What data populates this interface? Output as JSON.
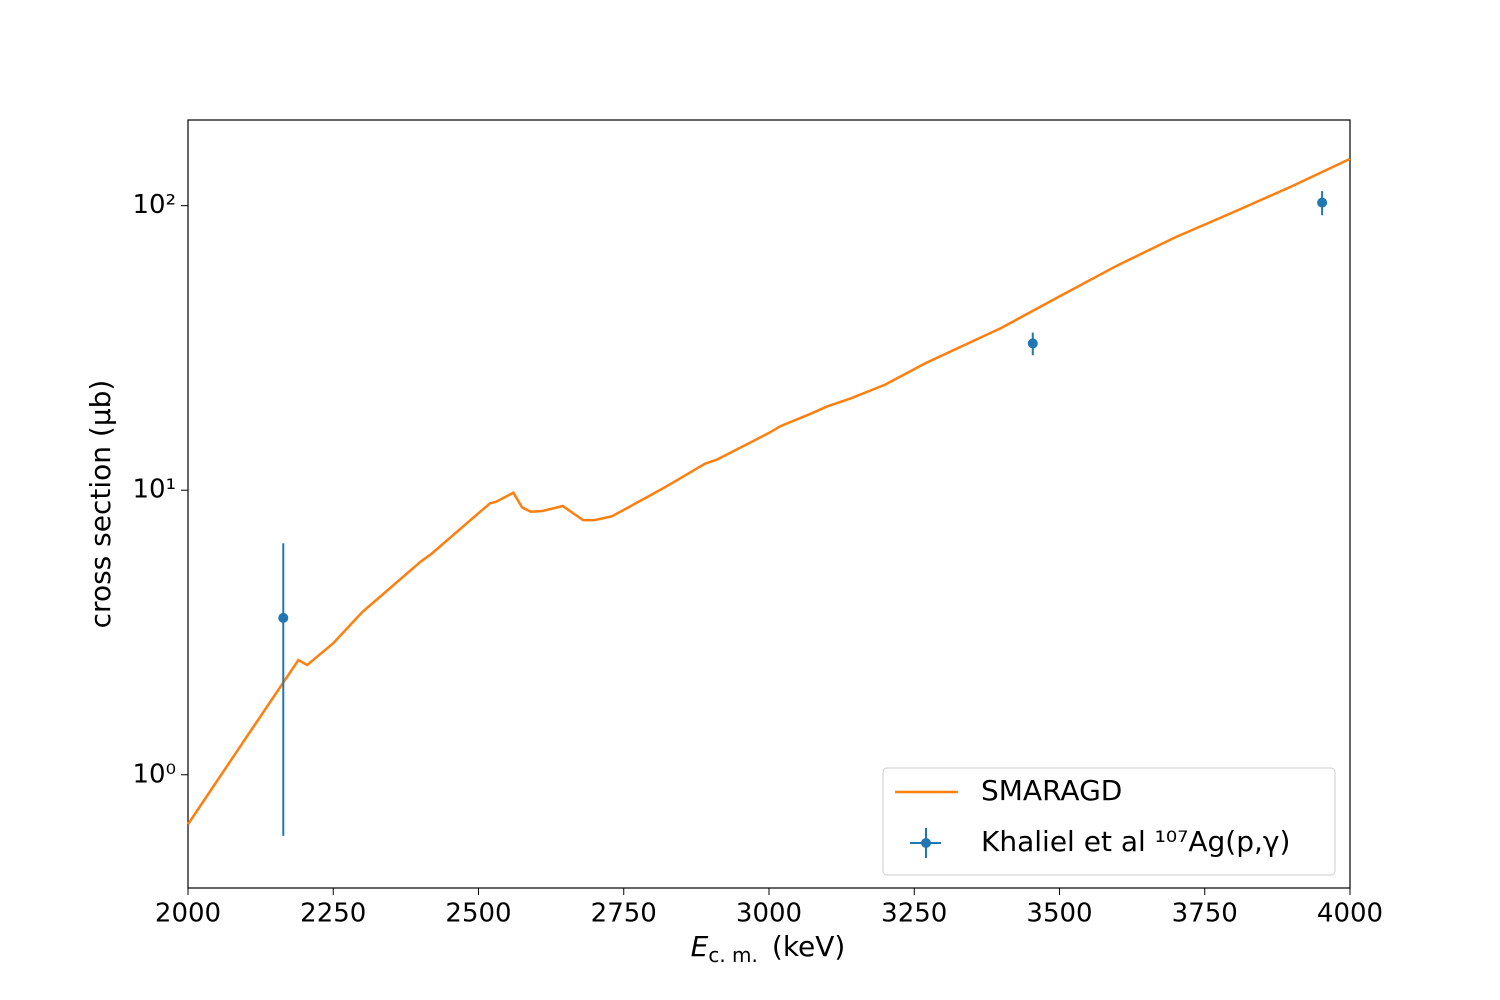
{
  "chart_data": {
    "type": "line",
    "xlabel": {
      "symbol": "E",
      "subscript": "c. m.",
      "unit": "(keV)"
    },
    "ylabel": "cross section (μb)",
    "xlim": [
      2000,
      4000
    ],
    "xticks": [
      2000,
      2250,
      2500,
      2750,
      3000,
      3250,
      3500,
      3750,
      4000
    ],
    "ylim": [
      0.4,
      200
    ],
    "yscale": "log",
    "yticks": [
      {
        "value": 1,
        "label": "10⁰"
      },
      {
        "value": 10,
        "label": "10¹"
      },
      {
        "value": 100,
        "label": "10²"
      }
    ],
    "legend": "lower right",
    "series": [
      {
        "name": "SMARAGD",
        "color": "#ff7f0e",
        "kind": "line",
        "x": [
          2000,
          2100,
          2190,
          2205,
          2250,
          2300,
          2400,
          2420,
          2500,
          2520,
          2530,
          2560,
          2575,
          2590,
          2610,
          2645,
          2680,
          2700,
          2730,
          2800,
          2830,
          2890,
          2910,
          3000,
          3020,
          3070,
          3100,
          3140,
          3200,
          3270,
          3400,
          3500,
          3600,
          3700,
          3800,
          3900,
          4000
        ],
        "values": [
          0.67,
          1.35,
          2.53,
          2.43,
          2.9,
          3.73,
          5.6,
          6.0,
          8.3,
          9.0,
          9.1,
          9.8,
          8.7,
          8.4,
          8.45,
          8.8,
          7.85,
          7.85,
          8.1,
          9.7,
          10.5,
          12.4,
          12.8,
          15.9,
          16.8,
          18.5,
          19.7,
          21.0,
          23.5,
          28.0,
          37.2,
          48,
          61.7,
          77.5,
          95,
          117,
          146
        ]
      },
      {
        "name": "Khaliel et al ¹⁰⁷Ag(p,γ)",
        "color": "#1f77b4",
        "kind": "errorbar",
        "x": [
          2164,
          3454,
          3952
        ],
        "values": [
          3.56,
          32.8,
          102.5
        ],
        "errors": [
          2.95,
          3,
          10
        ]
      }
    ]
  }
}
